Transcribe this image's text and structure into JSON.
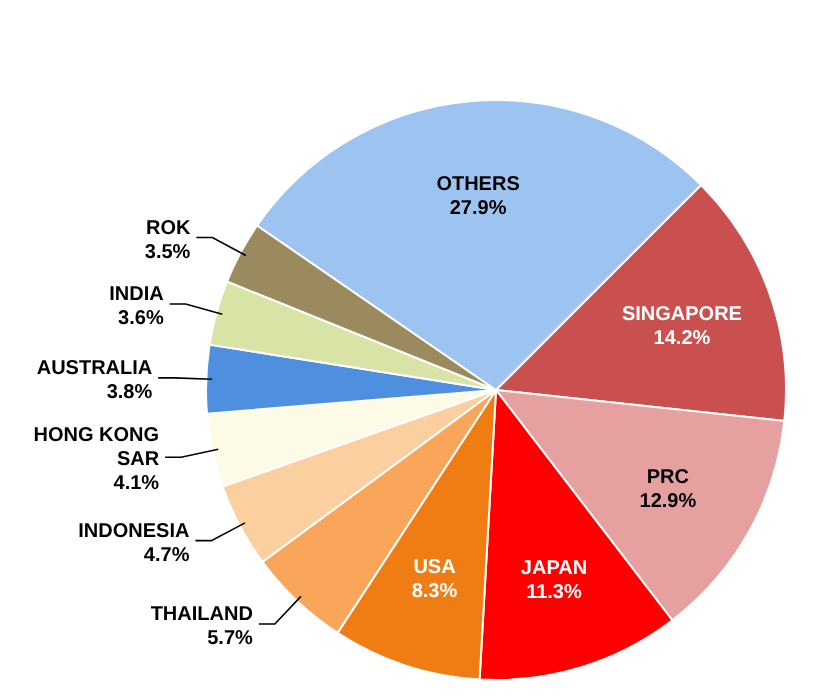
{
  "chart_data": {
    "type": "pie",
    "categories": [
      "SINGAPORE",
      "PRC",
      "JAPAN",
      "USA",
      "THAILAND",
      "INDONESIA",
      "HONG KONG SAR",
      "AUSTRALIA",
      "INDIA",
      "ROK",
      "OTHERS"
    ],
    "values": [
      14.2,
      12.9,
      11.3,
      8.3,
      5.7,
      4.7,
      4.1,
      3.8,
      3.6,
      3.5,
      27.9
    ],
    "value_labels": [
      "14.2%",
      "12.9%",
      "11.3%",
      "8.3%",
      "5.7%",
      "4.7%",
      "4.1%",
      "3.8%",
      "3.6%",
      "3.5%",
      "27.9%"
    ],
    "colors": [
      "#c9504e",
      "#e6a0a0",
      "#ff0000",
      "#f07d14",
      "#f9a65a",
      "#fbcfa0",
      "#fdfbe6",
      "#4f8fe0",
      "#d7e4a6",
      "#9a8a5e",
      "#9dc3f0"
    ]
  }
}
